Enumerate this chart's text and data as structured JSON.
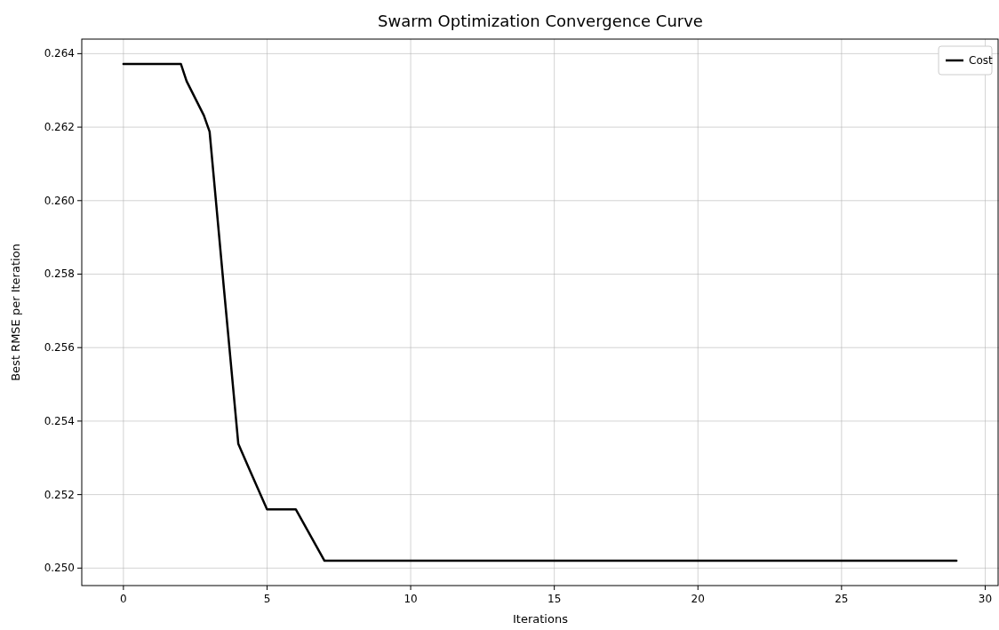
{
  "chart_data": {
    "type": "line",
    "title": "Swarm Optimization Convergence Curve",
    "xlabel": "Iterations",
    "ylabel": "Best RMSE per Iteration",
    "series": [
      {
        "name": "Cost",
        "color": "#000000",
        "x": [
          0,
          1,
          2,
          2.2,
          2.8,
          3,
          3.5,
          4,
          4.4,
          5,
          6,
          7,
          10,
          15,
          20,
          25,
          29
        ],
        "values": [
          0.26372,
          0.26372,
          0.26372,
          0.26325,
          0.26232,
          0.26188,
          0.2576,
          0.25338,
          0.25266,
          0.2516,
          0.2516,
          0.2502,
          0.2502,
          0.2502,
          0.2502,
          0.2502,
          0.2502
        ]
      }
    ],
    "xlim": [
      -1.45,
      30.45
    ],
    "xticks": [
      0,
      5,
      10,
      15,
      20,
      25,
      30
    ],
    "ylim": [
      0.249524,
      0.264396
    ],
    "yticks": [
      {
        "value": 0.25,
        "label": "0.250"
      },
      0.252,
      0.254,
      0.256,
      0.258,
      {
        "value": 0.26,
        "label": "0.260"
      },
      0.262,
      0.264
    ],
    "grid": true,
    "legend": "top right",
    "marker": "none",
    "line_style": "solid"
  }
}
